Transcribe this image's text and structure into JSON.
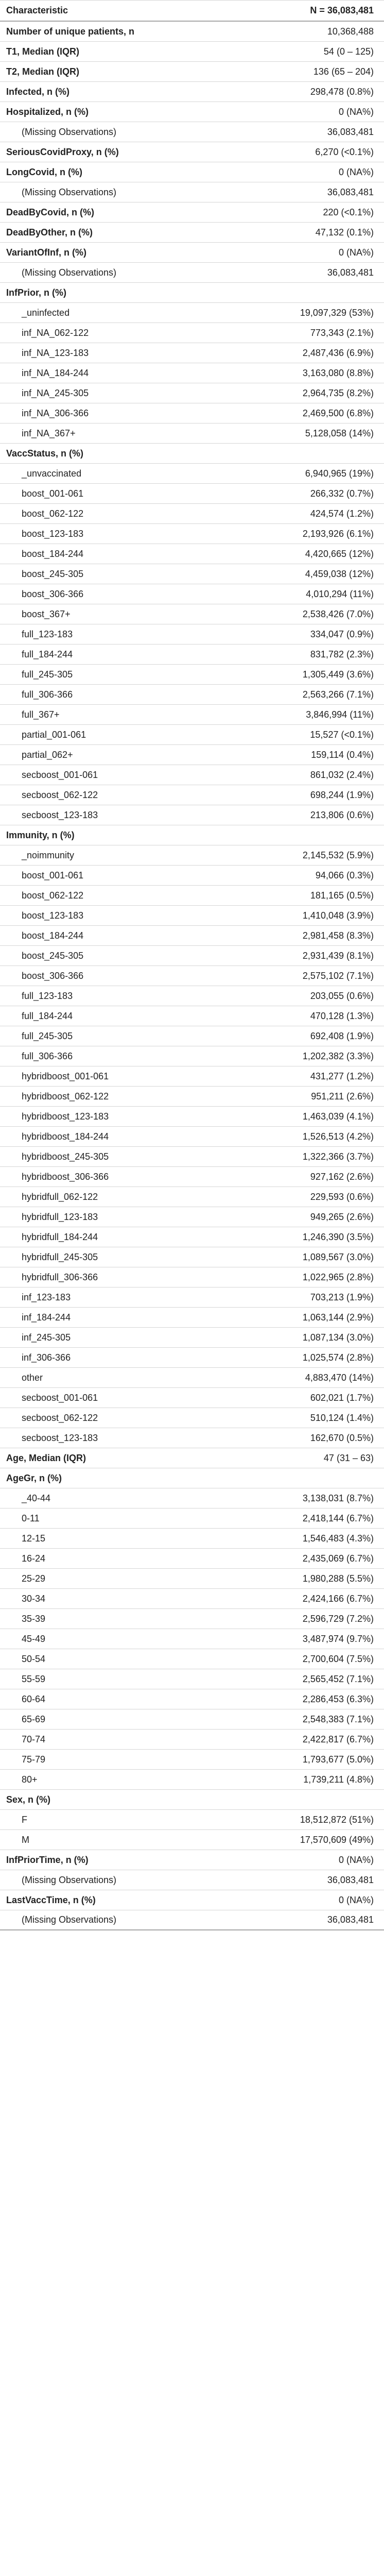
{
  "header": {
    "characteristic": "Characteristic",
    "n": "N = 36,083,481"
  },
  "rows": [
    {
      "label": "Number of unique patients, n",
      "value": "10,368,488",
      "kind": "var"
    },
    {
      "label": "T1, Median (IQR)",
      "value": "54 (0 – 125)",
      "kind": "var"
    },
    {
      "label": "T2, Median (IQR)",
      "value": "136 (65 – 204)",
      "kind": "var"
    },
    {
      "label": "Infected, n (%)",
      "value": "298,478 (0.8%)",
      "kind": "var"
    },
    {
      "label": "Hospitalized, n (%)",
      "value": "0 (NA%)",
      "kind": "var"
    },
    {
      "label": "(Missing Observations)",
      "value": "36,083,481",
      "kind": "lvl"
    },
    {
      "label": "SeriousCovidProxy, n (%)",
      "value": "6,270 (<0.1%)",
      "kind": "var"
    },
    {
      "label": "LongCovid, n (%)",
      "value": "0 (NA%)",
      "kind": "var"
    },
    {
      "label": "(Missing Observations)",
      "value": "36,083,481",
      "kind": "lvl"
    },
    {
      "label": "DeadByCovid, n (%)",
      "value": "220 (<0.1%)",
      "kind": "var"
    },
    {
      "label": "DeadByOther, n (%)",
      "value": "47,132 (0.1%)",
      "kind": "var"
    },
    {
      "label": "VariantOfInf, n (%)",
      "value": "0 (NA%)",
      "kind": "var"
    },
    {
      "label": "(Missing Observations)",
      "value": "36,083,481",
      "kind": "lvl"
    },
    {
      "label": "InfPrior, n (%)",
      "value": "",
      "kind": "var"
    },
    {
      "label": "_uninfected",
      "value": "19,097,329 (53%)",
      "kind": "lvl"
    },
    {
      "label": "inf_NA_062-122",
      "value": "773,343 (2.1%)",
      "kind": "lvl"
    },
    {
      "label": "inf_NA_123-183",
      "value": "2,487,436 (6.9%)",
      "kind": "lvl"
    },
    {
      "label": "inf_NA_184-244",
      "value": "3,163,080 (8.8%)",
      "kind": "lvl"
    },
    {
      "label": "inf_NA_245-305",
      "value": "2,964,735 (8.2%)",
      "kind": "lvl"
    },
    {
      "label": "inf_NA_306-366",
      "value": "2,469,500 (6.8%)",
      "kind": "lvl"
    },
    {
      "label": "inf_NA_367+",
      "value": "5,128,058 (14%)",
      "kind": "lvl"
    },
    {
      "label": "VaccStatus, n (%)",
      "value": "",
      "kind": "var"
    },
    {
      "label": "_unvaccinated",
      "value": "6,940,965 (19%)",
      "kind": "lvl"
    },
    {
      "label": "boost_001-061",
      "value": "266,332 (0.7%)",
      "kind": "lvl"
    },
    {
      "label": "boost_062-122",
      "value": "424,574 (1.2%)",
      "kind": "lvl"
    },
    {
      "label": "boost_123-183",
      "value": "2,193,926 (6.1%)",
      "kind": "lvl"
    },
    {
      "label": "boost_184-244",
      "value": "4,420,665 (12%)",
      "kind": "lvl"
    },
    {
      "label": "boost_245-305",
      "value": "4,459,038 (12%)",
      "kind": "lvl"
    },
    {
      "label": "boost_306-366",
      "value": "4,010,294 (11%)",
      "kind": "lvl"
    },
    {
      "label": "boost_367+",
      "value": "2,538,426 (7.0%)",
      "kind": "lvl"
    },
    {
      "label": "full_123-183",
      "value": "334,047 (0.9%)",
      "kind": "lvl"
    },
    {
      "label": "full_184-244",
      "value": "831,782 (2.3%)",
      "kind": "lvl"
    },
    {
      "label": "full_245-305",
      "value": "1,305,449 (3.6%)",
      "kind": "lvl"
    },
    {
      "label": "full_306-366",
      "value": "2,563,266 (7.1%)",
      "kind": "lvl"
    },
    {
      "label": "full_367+",
      "value": "3,846,994 (11%)",
      "kind": "lvl"
    },
    {
      "label": "partial_001-061",
      "value": "15,527 (<0.1%)",
      "kind": "lvl"
    },
    {
      "label": "partial_062+",
      "value": "159,114 (0.4%)",
      "kind": "lvl"
    },
    {
      "label": "secboost_001-061",
      "value": "861,032 (2.4%)",
      "kind": "lvl"
    },
    {
      "label": "secboost_062-122",
      "value": "698,244 (1.9%)",
      "kind": "lvl"
    },
    {
      "label": "secboost_123-183",
      "value": "213,806 (0.6%)",
      "kind": "lvl"
    },
    {
      "label": "Immunity, n (%)",
      "value": "",
      "kind": "var"
    },
    {
      "label": "_noimmunity",
      "value": "2,145,532 (5.9%)",
      "kind": "lvl"
    },
    {
      "label": "boost_001-061",
      "value": "94,066 (0.3%)",
      "kind": "lvl"
    },
    {
      "label": "boost_062-122",
      "value": "181,165 (0.5%)",
      "kind": "lvl"
    },
    {
      "label": "boost_123-183",
      "value": "1,410,048 (3.9%)",
      "kind": "lvl"
    },
    {
      "label": "boost_184-244",
      "value": "2,981,458 (8.3%)",
      "kind": "lvl"
    },
    {
      "label": "boost_245-305",
      "value": "2,931,439 (8.1%)",
      "kind": "lvl"
    },
    {
      "label": "boost_306-366",
      "value": "2,575,102 (7.1%)",
      "kind": "lvl"
    },
    {
      "label": "full_123-183",
      "value": "203,055 (0.6%)",
      "kind": "lvl"
    },
    {
      "label": "full_184-244",
      "value": "470,128 (1.3%)",
      "kind": "lvl"
    },
    {
      "label": "full_245-305",
      "value": "692,408 (1.9%)",
      "kind": "lvl"
    },
    {
      "label": "full_306-366",
      "value": "1,202,382 (3.3%)",
      "kind": "lvl"
    },
    {
      "label": "hybridboost_001-061",
      "value": "431,277 (1.2%)",
      "kind": "lvl"
    },
    {
      "label": "hybridboost_062-122",
      "value": "951,211 (2.6%)",
      "kind": "lvl"
    },
    {
      "label": "hybridboost_123-183",
      "value": "1,463,039 (4.1%)",
      "kind": "lvl"
    },
    {
      "label": "hybridboost_184-244",
      "value": "1,526,513 (4.2%)",
      "kind": "lvl"
    },
    {
      "label": "hybridboost_245-305",
      "value": "1,322,366 (3.7%)",
      "kind": "lvl"
    },
    {
      "label": "hybridboost_306-366",
      "value": "927,162 (2.6%)",
      "kind": "lvl"
    },
    {
      "label": "hybridfull_062-122",
      "value": "229,593 (0.6%)",
      "kind": "lvl"
    },
    {
      "label": "hybridfull_123-183",
      "value": "949,265 (2.6%)",
      "kind": "lvl"
    },
    {
      "label": "hybridfull_184-244",
      "value": "1,246,390 (3.5%)",
      "kind": "lvl"
    },
    {
      "label": "hybridfull_245-305",
      "value": "1,089,567 (3.0%)",
      "kind": "lvl"
    },
    {
      "label": "hybridfull_306-366",
      "value": "1,022,965 (2.8%)",
      "kind": "lvl"
    },
    {
      "label": "inf_123-183",
      "value": "703,213 (1.9%)",
      "kind": "lvl"
    },
    {
      "label": "inf_184-244",
      "value": "1,063,144 (2.9%)",
      "kind": "lvl"
    },
    {
      "label": "inf_245-305",
      "value": "1,087,134 (3.0%)",
      "kind": "lvl"
    },
    {
      "label": "inf_306-366",
      "value": "1,025,574 (2.8%)",
      "kind": "lvl"
    },
    {
      "label": "other",
      "value": "4,883,470 (14%)",
      "kind": "lvl"
    },
    {
      "label": "secboost_001-061",
      "value": "602,021 (1.7%)",
      "kind": "lvl"
    },
    {
      "label": "secboost_062-122",
      "value": "510,124 (1.4%)",
      "kind": "lvl"
    },
    {
      "label": "secboost_123-183",
      "value": "162,670 (0.5%)",
      "kind": "lvl"
    },
    {
      "label": "Age, Median (IQR)",
      "value": "47 (31 – 63)",
      "kind": "var"
    },
    {
      "label": "AgeGr, n (%)",
      "value": "",
      "kind": "var"
    },
    {
      "label": "_40-44",
      "value": "3,138,031 (8.7%)",
      "kind": "lvl"
    },
    {
      "label": "0-11",
      "value": "2,418,144 (6.7%)",
      "kind": "lvl"
    },
    {
      "label": "12-15",
      "value": "1,546,483 (4.3%)",
      "kind": "lvl"
    },
    {
      "label": "16-24",
      "value": "2,435,069 (6.7%)",
      "kind": "lvl"
    },
    {
      "label": "25-29",
      "value": "1,980,288 (5.5%)",
      "kind": "lvl"
    },
    {
      "label": "30-34",
      "value": "2,424,166 (6.7%)",
      "kind": "lvl"
    },
    {
      "label": "35-39",
      "value": "2,596,729 (7.2%)",
      "kind": "lvl"
    },
    {
      "label": "45-49",
      "value": "3,487,974 (9.7%)",
      "kind": "lvl"
    },
    {
      "label": "50-54",
      "value": "2,700,604 (7.5%)",
      "kind": "lvl"
    },
    {
      "label": "55-59",
      "value": "2,565,452 (7.1%)",
      "kind": "lvl"
    },
    {
      "label": "60-64",
      "value": "2,286,453 (6.3%)",
      "kind": "lvl"
    },
    {
      "label": "65-69",
      "value": "2,548,383 (7.1%)",
      "kind": "lvl"
    },
    {
      "label": "70-74",
      "value": "2,422,817 (6.7%)",
      "kind": "lvl"
    },
    {
      "label": "75-79",
      "value": "1,793,677 (5.0%)",
      "kind": "lvl"
    },
    {
      "label": "80+",
      "value": "1,739,211 (4.8%)",
      "kind": "lvl"
    },
    {
      "label": "Sex, n (%)",
      "value": "",
      "kind": "var"
    },
    {
      "label": "F",
      "value": "18,512,872 (51%)",
      "kind": "lvl"
    },
    {
      "label": "M",
      "value": "17,570,609 (49%)",
      "kind": "lvl"
    },
    {
      "label": "InfPriorTime, n (%)",
      "value": "0 (NA%)",
      "kind": "var"
    },
    {
      "label": "(Missing Observations)",
      "value": "36,083,481",
      "kind": "lvl"
    },
    {
      "label": "LastVaccTime, n (%)",
      "value": "0 (NA%)",
      "kind": "var"
    },
    {
      "label": "(Missing Observations)",
      "value": "36,083,481",
      "kind": "lvl"
    }
  ]
}
